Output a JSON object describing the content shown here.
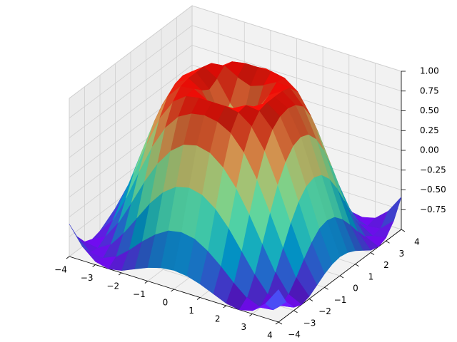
{
  "chart_data": {
    "type": "surface",
    "colormap": "rainbow",
    "grid": true,
    "x": [
      -4,
      -3.5,
      -3,
      -2.5,
      -2,
      -1.5,
      -1,
      -0.5,
      0,
      0.5,
      1,
      1.5,
      2,
      2.5,
      3,
      3.5,
      4
    ],
    "y": [
      -4,
      -3.5,
      -3,
      -2.5,
      -2,
      -1.5,
      -1,
      -0.5,
      0,
      0.5,
      1,
      1.5,
      2,
      2.5,
      3,
      3.5,
      4
    ],
    "z": [
      [
        -0.59,
        -0.82,
        -0.96,
        -1.0,
        -0.97,
        -0.9,
        -0.83,
        -0.78,
        -0.76,
        -0.78,
        -0.83,
        -0.9,
        -0.97,
        -1.0,
        -0.96,
        -0.82,
        -0.59
      ],
      [
        -0.82,
        -0.97,
        -0.99,
        -0.92,
        -0.78,
        -0.62,
        -0.48,
        -0.38,
        -0.35,
        -0.38,
        -0.48,
        -0.62,
        -0.78,
        -0.92,
        -0.99,
        -0.97,
        -0.82
      ],
      [
        -0.96,
        -0.99,
        -0.89,
        -0.69,
        -0.45,
        -0.21,
        -0.02,
        0.1,
        0.14,
        0.1,
        -0.02,
        -0.21,
        -0.45,
        -0.69,
        -0.89,
        -0.99,
        -0.96
      ],
      [
        -1.0,
        -0.92,
        -0.69,
        -0.38,
        -0.06,
        0.22,
        0.43,
        0.56,
        0.6,
        0.56,
        0.43,
        0.22,
        -0.06,
        -0.38,
        -0.69,
        -0.92,
        -1.0
      ],
      [
        -0.97,
        -0.78,
        -0.45,
        -0.06,
        0.31,
        0.6,
        0.79,
        0.88,
        0.91,
        0.88,
        0.79,
        0.6,
        0.31,
        -0.06,
        -0.45,
        -0.78,
        -0.97
      ],
      [
        -0.9,
        -0.62,
        -0.21,
        0.22,
        0.6,
        0.85,
        0.97,
        1.0,
        1.0,
        1.0,
        0.97,
        0.85,
        0.6,
        0.22,
        -0.21,
        -0.62,
        -0.9
      ],
      [
        -0.83,
        -0.48,
        -0.02,
        0.43,
        0.79,
        0.97,
        0.99,
        0.9,
        0.84,
        0.9,
        0.99,
        0.97,
        0.79,
        0.43,
        -0.02,
        -0.48,
        -0.83
      ],
      [
        -0.78,
        -0.38,
        0.1,
        0.56,
        0.88,
        1.0,
        0.9,
        0.65,
        0.48,
        0.65,
        0.9,
        1.0,
        0.88,
        0.56,
        0.1,
        -0.38,
        -0.78
      ],
      [
        -0.76,
        -0.35,
        0.14,
        0.6,
        0.91,
        1.0,
        0.84,
        0.48,
        0,
        0.48,
        0.84,
        1.0,
        0.91,
        0.6,
        0.14,
        -0.35,
        -0.76
      ],
      [
        -0.78,
        -0.38,
        0.1,
        0.56,
        0.88,
        1.0,
        0.9,
        0.65,
        0.48,
        0.65,
        0.9,
        1.0,
        0.88,
        0.56,
        0.1,
        -0.38,
        -0.78
      ],
      [
        -0.83,
        -0.48,
        -0.02,
        0.43,
        0.79,
        0.97,
        0.99,
        0.9,
        0.84,
        0.9,
        0.99,
        0.97,
        0.79,
        0.43,
        -0.02,
        -0.48,
        -0.83
      ],
      [
        -0.9,
        -0.62,
        -0.21,
        0.22,
        0.6,
        0.85,
        0.97,
        1.0,
        1.0,
        1.0,
        0.97,
        0.85,
        0.6,
        0.22,
        -0.21,
        -0.62,
        -0.9
      ],
      [
        -0.97,
        -0.78,
        -0.45,
        -0.06,
        0.31,
        0.6,
        0.79,
        0.88,
        0.91,
        0.88,
        0.79,
        0.6,
        0.31,
        -0.06,
        -0.45,
        -0.78,
        -0.97
      ],
      [
        -1.0,
        -0.92,
        -0.69,
        -0.38,
        -0.06,
        0.22,
        0.43,
        0.56,
        0.6,
        0.56,
        0.43,
        0.22,
        -0.06,
        -0.38,
        -0.69,
        -0.92,
        -1.0
      ],
      [
        -0.96,
        -0.99,
        -0.89,
        -0.69,
        -0.45,
        -0.21,
        -0.02,
        0.1,
        0.14,
        0.1,
        -0.02,
        -0.21,
        -0.45,
        -0.69,
        -0.89,
        -0.99,
        -0.96
      ],
      [
        -0.82,
        -0.97,
        -0.99,
        -0.92,
        -0.78,
        -0.62,
        -0.48,
        -0.38,
        -0.35,
        -0.38,
        -0.48,
        -0.62,
        -0.78,
        -0.92,
        -0.99,
        -0.97,
        -0.82
      ],
      [
        -0.59,
        -0.82,
        -0.96,
        -1.0,
        -0.97,
        -0.9,
        -0.83,
        -0.78,
        -0.76,
        -0.78,
        -0.83,
        -0.9,
        -0.97,
        -1.0,
        -0.96,
        -0.82,
        -0.59
      ]
    ],
    "xlim": [
      -4,
      4
    ],
    "ylim": [
      -4,
      4
    ],
    "zlim": [
      -1,
      1
    ],
    "xticks": [
      {
        "value": -4,
        "label": "−4"
      },
      {
        "value": -3,
        "label": "−3"
      },
      {
        "value": -2,
        "label": "−2"
      },
      {
        "value": -1,
        "label": "−1"
      },
      0,
      1,
      2,
      3,
      4
    ],
    "yticks": [
      {
        "value": -4,
        "label": "−4"
      },
      {
        "value": -3,
        "label": "−3"
      },
      {
        "value": -2,
        "label": "−2"
      },
      {
        "value": -1,
        "label": "−1"
      },
      0,
      1,
      2,
      3,
      4
    ],
    "zticks": [
      {
        "value": -0.75,
        "label": "−0.75"
      },
      {
        "value": -0.5,
        "label": "−0.50"
      },
      {
        "value": -0.25,
        "label": "−0.25"
      },
      {
        "value": 0,
        "label": "0.00"
      },
      0.25,
      {
        "value": 0.5,
        "label": "0.50"
      },
      0.75,
      {
        "value": 1,
        "label": "1.00"
      }
    ]
  }
}
